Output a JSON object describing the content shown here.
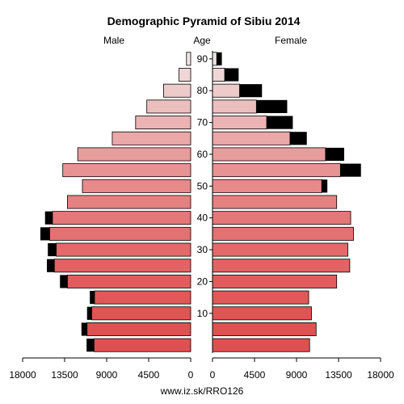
{
  "chart_data": {
    "type": "bar",
    "title": "Demographic Pyramid of Sibiu 2014",
    "left_label": "Male",
    "center_label": "Age",
    "right_label": "Female",
    "caption": "www.iz.sk/RRO126",
    "x_ticks_left": [
      "18000",
      "13500",
      "9000",
      "4500",
      "0"
    ],
    "x_ticks_right": [
      "0",
      "4500",
      "9000",
      "13500",
      "18000"
    ],
    "x_max": 18000,
    "age_ticks": [
      "10",
      "20",
      "30",
      "40",
      "50",
      "60",
      "70",
      "80",
      "90"
    ],
    "age_groups": [
      "0-4",
      "5-9",
      "10-14",
      "15-19",
      "20-24",
      "25-29",
      "30-34",
      "35-39",
      "40-44",
      "45-49",
      "50-54",
      "55-59",
      "60-64",
      "65-69",
      "70-74",
      "75-79",
      "80-84",
      "85-89",
      "90+"
    ],
    "series": [
      {
        "name": "Male",
        "values": [
          10350,
          11100,
          10600,
          10300,
          13200,
          14600,
          14400,
          15100,
          14800,
          13200,
          11600,
          13700,
          12100,
          8400,
          5900,
          4700,
          2900,
          1250,
          450
        ],
        "excess": [
          800,
          600,
          500,
          500,
          800,
          800,
          900,
          1000,
          800,
          0,
          0,
          0,
          0,
          0,
          0,
          0,
          0,
          0,
          0
        ]
      },
      {
        "name": "Female",
        "values": [
          10400,
          11100,
          10600,
          10300,
          13300,
          14700,
          14500,
          15100,
          14800,
          13300,
          11700,
          13700,
          12100,
          8300,
          5800,
          4700,
          2900,
          1300,
          450
        ],
        "excess": [
          0,
          0,
          0,
          0,
          0,
          0,
          0,
          0,
          0,
          0,
          600,
          2200,
          2000,
          1800,
          2800,
          3300,
          2400,
          1500,
          550
        ]
      }
    ],
    "colors": {
      "excess": "#000000",
      "young": "#e05050",
      "old": "#f0e4e4",
      "outline": "#000000"
    },
    "grid": false
  }
}
